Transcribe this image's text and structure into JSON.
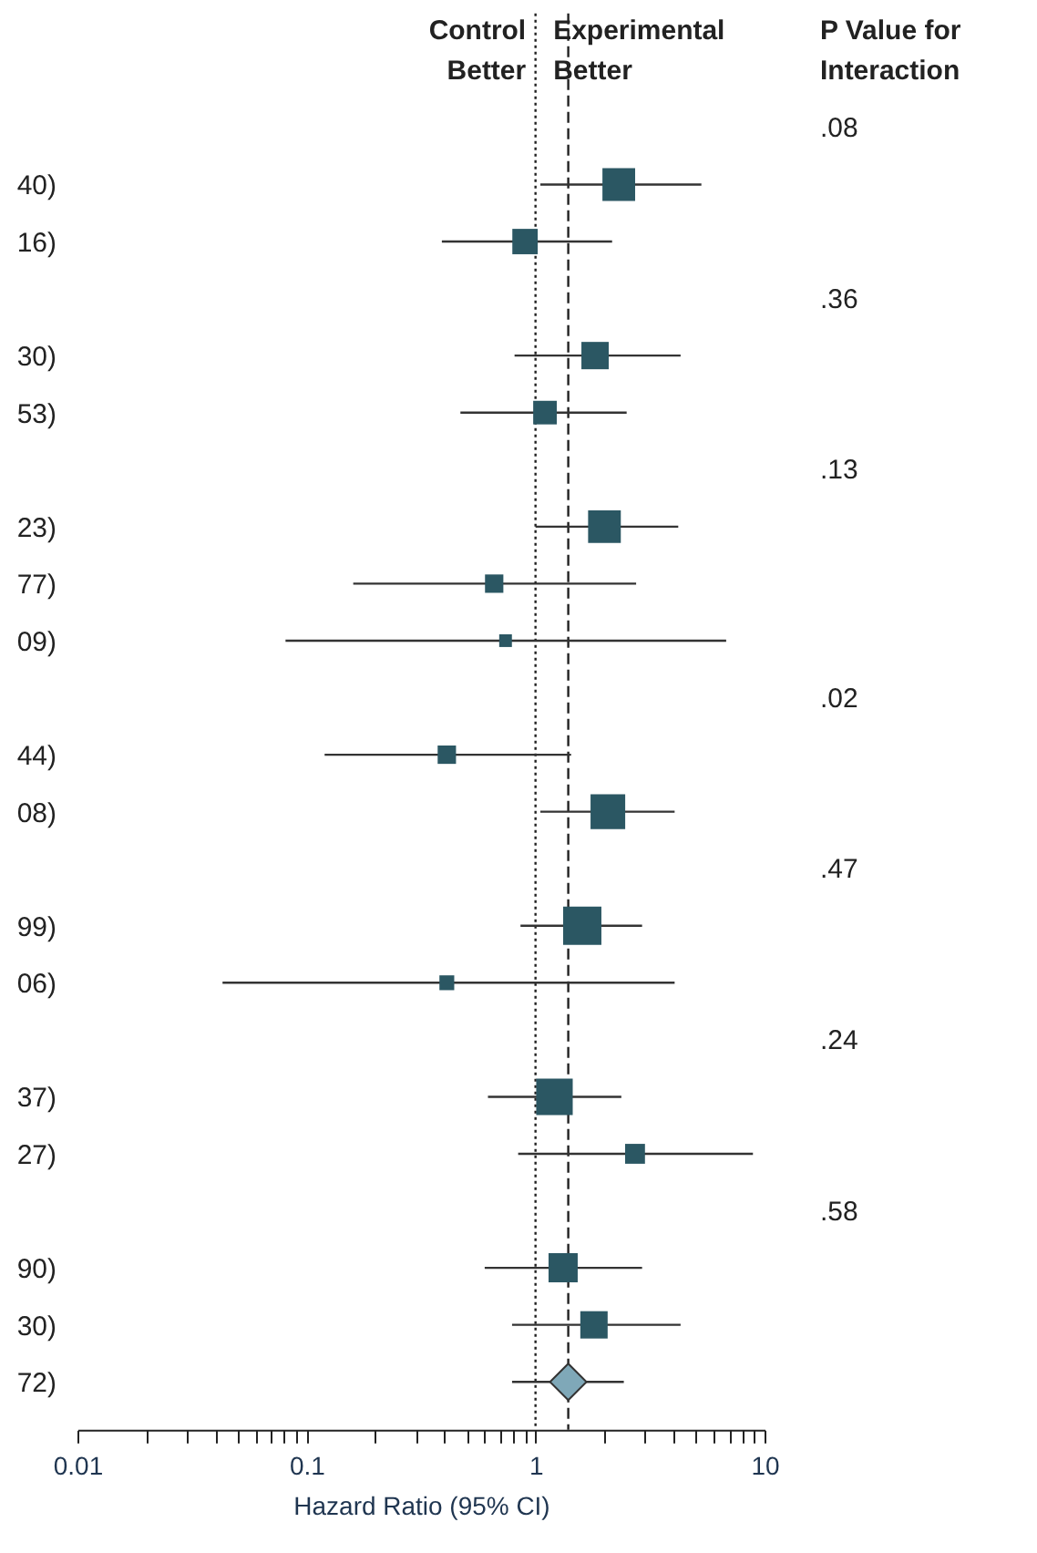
{
  "chart_data": {
    "type": "scatter",
    "orientation": "horizontal",
    "xlabel": "Hazard Ratio (95% CI)",
    "log": "x",
    "categories": [
      null,
      "40)",
      "16)",
      null,
      "30)",
      "53)",
      null,
      "23)",
      "77)",
      "09)",
      null,
      "44)",
      "08)",
      null,
      "99)",
      "06)",
      null,
      "37)",
      "27)",
      null,
      "90)",
      "30)",
      "72)"
    ],
    "xlim": [
      0.01,
      10
    ],
    "xticks": [
      0.01,
      {
        "value": 0.02,
        "label": null
      },
      {
        "value": 0.03,
        "label": null
      },
      {
        "value": 0.04,
        "label": null
      },
      {
        "value": 0.05,
        "label": null
      },
      {
        "value": 0.06,
        "label": null
      },
      {
        "value": 0.07,
        "label": null
      },
      {
        "value": 0.08,
        "label": null
      },
      {
        "value": 0.09,
        "label": null
      },
      0.1,
      {
        "value": 0.2,
        "label": null
      },
      {
        "value": 0.3,
        "label": null
      },
      {
        "value": 0.4,
        "label": null
      },
      {
        "value": 0.5,
        "label": null
      },
      {
        "value": 0.6,
        "label": null
      },
      {
        "value": 0.7,
        "label": null
      },
      {
        "value": 0.8,
        "label": null
      },
      {
        "value": 0.9,
        "label": null
      },
      1,
      {
        "value": 2,
        "label": null
      },
      {
        "value": 3,
        "label": null
      },
      {
        "value": 4,
        "label": null
      },
      {
        "value": 5,
        "label": null
      },
      {
        "value": 6,
        "label": null
      },
      {
        "value": 7,
        "label": null
      },
      {
        "value": 8,
        "label": null
      },
      {
        "value": 9,
        "label": null
      },
      10
    ],
    "series": [
      {
        "marker": "square",
        "color": "#2b5763",
        "values": [
          null,
          2.31,
          0.9,
          null,
          1.82,
          1.1,
          null,
          2.0,
          0.66,
          0.74,
          null,
          0.41,
          2.07,
          null,
          1.6,
          0.41,
          null,
          1.21,
          2.72,
          null,
          1.32,
          1.8,
          null
        ],
        "errors": [
          null,
          [
            1.05,
            5.3
          ],
          [
            0.39,
            2.16
          ],
          null,
          [
            0.81,
            4.3
          ],
          [
            0.47,
            2.5
          ],
          null,
          [
            1.0,
            4.2
          ],
          [
            0.16,
            2.75
          ],
          [
            0.081,
            6.8
          ],
          null,
          [
            0.12,
            1.43
          ],
          [
            1.05,
            4.05
          ],
          null,
          [
            0.86,
            2.92
          ],
          [
            0.043,
            4.05
          ],
          null,
          [
            0.62,
            2.37
          ],
          [
            0.84,
            8.9
          ],
          null,
          [
            0.6,
            2.92
          ],
          [
            0.79,
            4.3
          ],
          null
        ],
        "sizes": [
          null,
          0.73,
          0.44,
          null,
          0.51,
          0.38,
          null,
          0.73,
          0.23,
          0.11,
          null,
          0.23,
          0.82,
          null,
          1,
          0.15,
          null,
          0.91,
          0.27,
          null,
          0.58,
          0.51,
          null
        ]
      },
      {
        "marker": "diamond",
        "color": "#7fa8b8",
        "values": [
          null,
          null,
          null,
          null,
          null,
          null,
          null,
          null,
          null,
          null,
          null,
          null,
          null,
          null,
          null,
          null,
          null,
          null,
          null,
          null,
          null,
          null,
          1.39
        ],
        "errors": [
          null,
          null,
          null,
          null,
          null,
          null,
          null,
          null,
          null,
          null,
          null,
          null,
          null,
          null,
          null,
          null,
          null,
          null,
          null,
          null,
          null,
          null,
          [
            0.79,
            2.43
          ]
        ]
      }
    ],
    "ref_lines": [
      {
        "axis": "x",
        "value": 1,
        "line_style": "dotted"
      },
      {
        "axis": "x",
        "value": 1.39,
        "line_style": "dashed"
      }
    ],
    "annotations": [
      "Control\nBetter",
      "Experimental\nBetter",
      "P Value for\nInteraction",
      ".08",
      ".36",
      ".13",
      ".02",
      ".47",
      ".24",
      ".58"
    ]
  }
}
